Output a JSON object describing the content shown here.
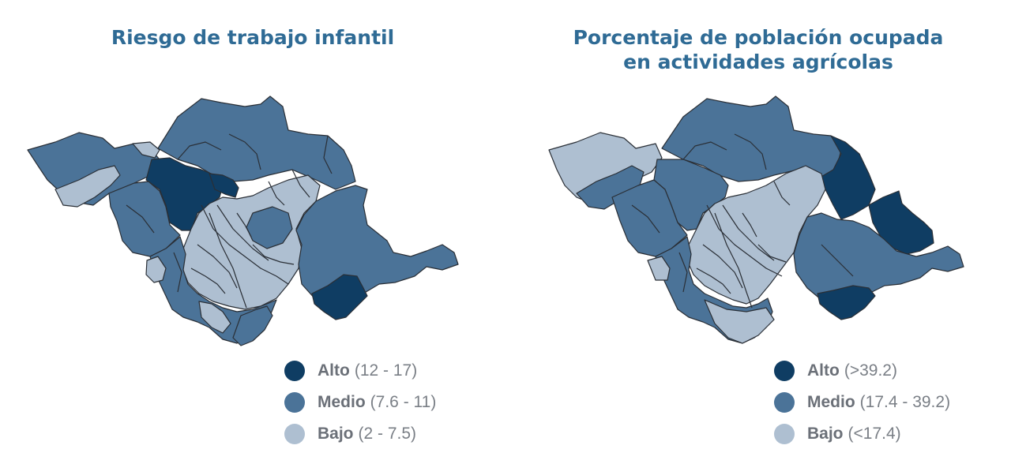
{
  "colors": {
    "alto": "#0f3d63",
    "medio": "#4b7398",
    "bajo": "#aebfd1",
    "title": "#2f6b95",
    "border": "#2a2f36"
  },
  "maps": [
    {
      "title_lines": [
        "Riesgo de trabajo infantil"
      ],
      "legend": [
        {
          "level": "Alto",
          "range": "(12 - 17)",
          "color": "alto"
        },
        {
          "level": "Medio",
          "range": "(7.6 - 11)",
          "color": "medio"
        },
        {
          "level": "Bajo",
          "range": "(2 - 7.5)",
          "color": "bajo"
        }
      ]
    },
    {
      "title_lines": [
        "Porcentaje de población ocupada",
        "en actividades agrícolas"
      ],
      "legend": [
        {
          "level": "Alto",
          "range": "(>39.2)",
          "color": "alto"
        },
        {
          "level": "Medio",
          "range": "(17.4 - 39.2)",
          "color": "medio"
        },
        {
          "level": "Bajo",
          "range": "(<17.4)",
          "color": "bajo"
        }
      ]
    }
  ]
}
